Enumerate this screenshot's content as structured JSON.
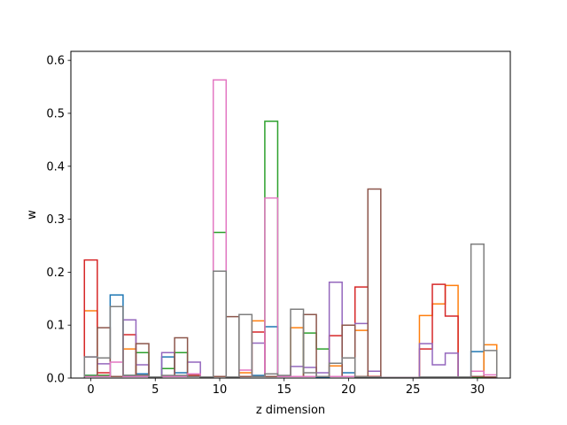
{
  "chart_data": {
    "type": "step",
    "xlabel": "z dimension",
    "ylabel": "w",
    "xlim": [
      -1.55,
      32.55
    ],
    "ylim": [
      0,
      0.617
    ],
    "grid": false,
    "legend": "none",
    "xticks": [
      0,
      5,
      10,
      15,
      20,
      25,
      30
    ],
    "yticks": [
      0.0,
      0.1,
      0.2,
      0.3,
      0.4,
      0.5,
      0.6
    ],
    "xtick_labels": [
      "0",
      "5",
      "10",
      "15",
      "20",
      "25",
      "30"
    ],
    "ytick_labels": [
      "0.0",
      "0.1",
      "0.2",
      "0.3",
      "0.4",
      "0.5",
      "0.6"
    ],
    "x": [
      0,
      1,
      2,
      3,
      4,
      5,
      6,
      7,
      8,
      9,
      10,
      11,
      12,
      13,
      14,
      15,
      16,
      17,
      18,
      19,
      20,
      21,
      22,
      23,
      24,
      25,
      26,
      27,
      28,
      29,
      30,
      31
    ],
    "series": [
      {
        "color": "#1f77b4",
        "values": [
          0.005,
          0.005,
          0.157,
          0.005,
          0.008,
          0.002,
          0.04,
          0.01,
          0.008,
          0.002,
          0.003,
          0.002,
          0.003,
          0.005,
          0.097,
          0.003,
          0.003,
          0.003,
          0.002,
          0.003,
          0.01,
          0.002,
          0.002,
          0.001,
          0.001,
          0.001,
          0.002,
          0.002,
          0.002,
          0.002,
          0.05,
          0.002
        ]
      },
      {
        "color": "#ff7f0e",
        "values": [
          0.127,
          0.005,
          0.003,
          0.055,
          0.005,
          0.002,
          0.003,
          0.003,
          0.008,
          0.002,
          0.003,
          0.002,
          0.01,
          0.108,
          0.003,
          0.003,
          0.095,
          0.003,
          0.003,
          0.023,
          0.003,
          0.09,
          0.003,
          0.001,
          0.001,
          0.001,
          0.118,
          0.14,
          0.175,
          0.002,
          0.003,
          0.063
        ]
      },
      {
        "color": "#2ca02c",
        "values": [
          0.005,
          0.005,
          0.003,
          0.005,
          0.048,
          0.002,
          0.018,
          0.048,
          0.005,
          0.002,
          0.275,
          0.002,
          0.003,
          0.003,
          0.485,
          0.003,
          0.003,
          0.085,
          0.055,
          0.003,
          0.003,
          0.002,
          0.002,
          0.001,
          0.001,
          0.001,
          0.002,
          0.002,
          0.002,
          0.002,
          0.002,
          0.002
        ]
      },
      {
        "color": "#d62728",
        "values": [
          0.223,
          0.01,
          0.003,
          0.082,
          0.005,
          0.002,
          0.003,
          0.003,
          0.005,
          0.002,
          0.003,
          0.002,
          0.003,
          0.087,
          0.003,
          0.003,
          0.003,
          0.003,
          0.003,
          0.08,
          0.1,
          0.172,
          0.003,
          0.001,
          0.001,
          0.001,
          0.055,
          0.177,
          0.117,
          0.002,
          0.003,
          0.002
        ]
      },
      {
        "color": "#9467bd",
        "values": [
          0.04,
          0.027,
          0.003,
          0.11,
          0.025,
          0.002,
          0.048,
          0.003,
          0.03,
          0.002,
          0.003,
          0.002,
          0.003,
          0.066,
          0.003,
          0.003,
          0.022,
          0.02,
          0.01,
          0.181,
          0.003,
          0.103,
          0.013,
          0.001,
          0.001,
          0.001,
          0.065,
          0.025,
          0.047,
          0.002,
          0.003,
          0.002
        ]
      },
      {
        "color": "#8c564b",
        "values": [
          0.003,
          0.095,
          0.003,
          0.003,
          0.065,
          0.002,
          0.003,
          0.076,
          0.003,
          0.002,
          0.003,
          0.116,
          0.003,
          0.003,
          0.003,
          0.003,
          0.003,
          0.12,
          0.003,
          0.003,
          0.1,
          0.003,
          0.357,
          0.001,
          0.001,
          0.001,
          0.002,
          0.002,
          0.002,
          0.002,
          0.003,
          0.002
        ]
      },
      {
        "color": "#e377c2",
        "values": [
          0.003,
          0.003,
          0.03,
          0.003,
          0.003,
          0.002,
          0.003,
          0.003,
          0.008,
          0.002,
          0.563,
          0.002,
          0.015,
          0.003,
          0.34,
          0.003,
          0.003,
          0.003,
          0.003,
          0.003,
          0.003,
          0.002,
          0.002,
          0.001,
          0.001,
          0.001,
          0.002,
          0.002,
          0.002,
          0.002,
          0.013,
          0.006
        ]
      },
      {
        "color": "#7f7f7f",
        "values": [
          0.04,
          0.038,
          0.135,
          0.005,
          0.005,
          0.002,
          0.005,
          0.005,
          0.003,
          0.002,
          0.202,
          0.002,
          0.12,
          0.003,
          0.008,
          0.005,
          0.13,
          0.01,
          0.003,
          0.028,
          0.038,
          0.002,
          0.002,
          0.001,
          0.001,
          0.001,
          0.002,
          0.002,
          0.002,
          0.002,
          0.253,
          0.052
        ]
      }
    ]
  }
}
